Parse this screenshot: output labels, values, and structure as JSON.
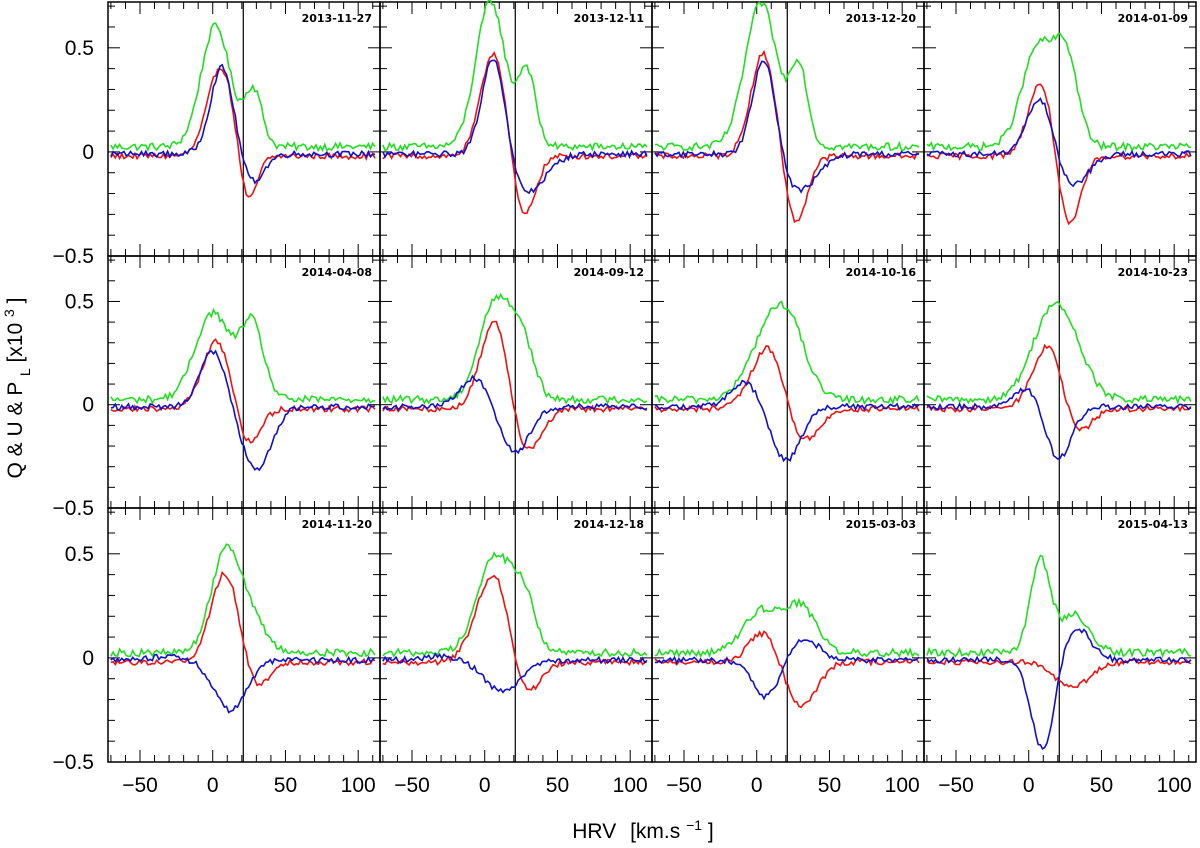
{
  "chart_data": {
    "type": "line",
    "grid_layout": "3x4",
    "xlabel": "HRV",
    "xunit": "[km.s",
    "xunit_exp": "−1",
    "xunit_close": "]",
    "ylabel_parts": [
      "Q & U & P",
      "L",
      " [x10",
      "3",
      "]"
    ],
    "xlim": [
      -72,
      115
    ],
    "ylim": [
      -0.5,
      0.72
    ],
    "x_ticks": [
      -50,
      0,
      50,
      100
    ],
    "x_tick_labels": [
      "−50",
      "0",
      "50",
      "100"
    ],
    "y_ticks": [
      -0.5,
      0,
      0.5
    ],
    "y_tick_labels": [
      "−0.5",
      "0",
      "0.5"
    ],
    "vertical_line_x": 21,
    "series_colors": {
      "Q": "#ee1111",
      "U": "#1111cc",
      "P_L": "#22dd22"
    },
    "panels": [
      {
        "date": "2013-11-27",
        "g": {
          "amp": 0.58,
          "c": 2.0,
          "w": 10,
          "bumpAmp": 0.27,
          "bumpC": 28,
          "bumpW": 6
        },
        "q": {
          "pAmp": 0.43,
          "pC": 5.5,
          "pW": 9,
          "nAmp": 0.25,
          "nC": 24,
          "nW": 6
        },
        "u": {
          "pAmp": 0.42,
          "pC": 6.5,
          "pW": 8,
          "nAmp": 0.14,
          "nC": 27,
          "nW": 8
        }
      },
      {
        "date": "2013-12-11",
        "g": {
          "amp": 0.7,
          "c": 4.0,
          "w": 10,
          "bumpAmp": 0.36,
          "bumpC": 29,
          "bumpW": 6
        },
        "q": {
          "pAmp": 0.51,
          "pC": 6.5,
          "pW": 9,
          "nAmp": 0.32,
          "nC": 26,
          "nW": 8
        },
        "u": {
          "pAmp": 0.51,
          "pC": 6.5,
          "pW": 8,
          "nAmp": 0.19,
          "nC": 28,
          "nW": 13
        }
      },
      {
        "date": "2013-12-20",
        "g": {
          "amp": 0.69,
          "c": 3.0,
          "w": 11,
          "bumpAmp": 0.38,
          "bumpC": 29,
          "bumpW": 6
        },
        "q": {
          "pAmp": 0.5,
          "pC": 5.0,
          "pW": 9,
          "nAmp": 0.34,
          "nC": 26,
          "nW": 8
        },
        "u": {
          "pAmp": 0.49,
          "pC": 5.5,
          "pW": 8,
          "nAmp": 0.18,
          "nC": 28,
          "nW": 13
        }
      },
      {
        "date": "2014-01-09",
        "g": {
          "amp": 0.48,
          "c": 6.5,
          "w": 11,
          "bumpAmp": 0.4,
          "bumpC": 26,
          "bumpW": 8
        },
        "q": {
          "pAmp": 0.37,
          "pC": 9.0,
          "pW": 9,
          "nAmp": 0.37,
          "nC": 27,
          "nW": 8
        },
        "u": {
          "pAmp": 0.3,
          "pC": 8.5,
          "pW": 9,
          "nAmp": 0.16,
          "nC": 28,
          "nW": 12
        }
      },
      {
        "date": "2014-04-08",
        "g": {
          "amp": 0.42,
          "c": 0.0,
          "w": 12,
          "bumpAmp": 0.36,
          "bumpC": 27,
          "bumpW": 8
        },
        "q": {
          "pAmp": 0.33,
          "pC": 3.0,
          "pW": 10,
          "nAmp": 0.19,
          "nC": 24,
          "nW": 8
        },
        "u": {
          "pAmp": 0.27,
          "pC": 0.0,
          "pW": 9,
          "nAmp": 0.31,
          "nC": 30,
          "nW": 10
        }
      },
      {
        "date": "2014-09-12",
        "g": {
          "amp": 0.48,
          "c": 7.5,
          "w": 11,
          "bumpAmp": 0.25,
          "bumpC": 26,
          "bumpW": 8
        },
        "q": {
          "pAmp": 0.48,
          "pC": 8.0,
          "pW": 10,
          "nAmp": 0.25,
          "nC": 26,
          "nW": 11
        },
        "u": {
          "pAmp": 0.14,
          "pC": -7.0,
          "pW": 10,
          "nAmp": 0.22,
          "nC": 21,
          "nW": 10
        }
      },
      {
        "date": "2014-10-16",
        "g": {
          "amp": 0.35,
          "c": 10.0,
          "w": 14,
          "bumpAmp": 0.2,
          "bumpC": 25,
          "bumpW": 11
        },
        "q": {
          "pAmp": 0.35,
          "pC": 10.0,
          "pW": 12,
          "nAmp": 0.22,
          "nC": 28,
          "nW": 12
        },
        "u": {
          "pAmp": 0.12,
          "pC": -8.0,
          "pW": 10,
          "nAmp": 0.26,
          "nC": 20,
          "nW": 10
        }
      },
      {
        "date": "2014-10-23",
        "g": {
          "amp": 0.37,
          "c": 14.0,
          "w": 13,
          "bumpAmp": 0.18,
          "bumpC": 30,
          "bumpW": 12
        },
        "q": {
          "pAmp": 0.35,
          "pC": 15.0,
          "pW": 11,
          "nAmp": 0.19,
          "nC": 30,
          "nW": 10
        },
        "u": {
          "pAmp": 0.1,
          "pC": 0.0,
          "pW": 10,
          "nAmp": 0.26,
          "nC": 20,
          "nW": 9
        }
      },
      {
        "date": "2014-11-20",
        "g": {
          "amp": 0.49,
          "c": 9.0,
          "w": 10,
          "bumpAmp": 0.14,
          "bumpC": 27,
          "bumpW": 10
        },
        "q": {
          "pAmp": 0.44,
          "pC": 9.0,
          "pW": 10,
          "nAmp": 0.15,
          "nC": 28,
          "nW": 9
        },
        "u": {
          "pAmp": 0.02,
          "pC": -30.0,
          "pW": 10,
          "nAmp": 0.24,
          "nC": 12,
          "nW": 11
        }
      },
      {
        "date": "2014-12-18",
        "g": {
          "amp": 0.46,
          "c": 7.0,
          "w": 12,
          "bumpAmp": 0.23,
          "bumpC": 27,
          "bumpW": 8
        },
        "q": {
          "pAmp": 0.45,
          "pC": 7.0,
          "pW": 12,
          "nAmp": 0.22,
          "nC": 26,
          "nW": 10
        },
        "u": {
          "pAmp": 0.02,
          "pC": -30.0,
          "pW": 10,
          "nAmp": 0.15,
          "nC": 12,
          "nW": 12
        }
      },
      {
        "date": "2015-03-03",
        "g": {
          "amp": 0.2,
          "c": 3.0,
          "w": 12,
          "bumpAmp": 0.22,
          "bumpC": 30,
          "bumpW": 11
        },
        "q": {
          "pAmp": 0.15,
          "pC": 5.0,
          "pW": 10,
          "nAmp": 0.21,
          "nC": 30,
          "nW": 11
        },
        "u": {
          "pAmp": 0.1,
          "pC": 33.0,
          "pW": 10,
          "nAmp": 0.18,
          "nC": 6,
          "nW": 9
        }
      },
      {
        "date": "2015-04-13",
        "g": {
          "amp": 0.44,
          "c": 8.0,
          "w": 7,
          "bumpAmp": 0.18,
          "bumpC": 32,
          "bumpW": 10
        },
        "q": {
          "pAmp": 0.0,
          "pC": 0.0,
          "pW": 10,
          "nAmp": 0.12,
          "nC": 30,
          "nW": 12
        },
        "u": {
          "pAmp": 0.16,
          "pC": 32.0,
          "pW": 10,
          "nAmp": 0.44,
          "nC": 10,
          "nW": 8
        }
      }
    ]
  }
}
